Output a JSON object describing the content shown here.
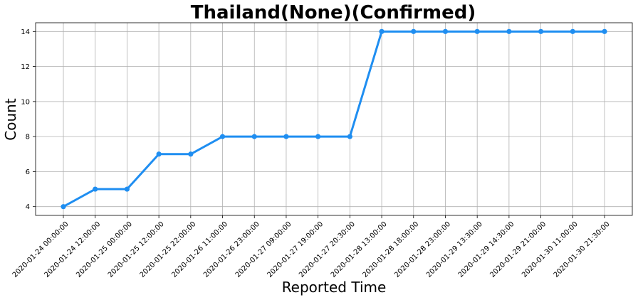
{
  "chart_data": {
    "type": "line",
    "title": "Thailand(None)(Confirmed)",
    "xlabel": "Reported Time",
    "ylabel": "Count",
    "categories": [
      "2020-01-24 00:00:00",
      "2020-01-24 12:00:00",
      "2020-01-25 00:00:00",
      "2020-01-25 12:00:00",
      "2020-01-25 22:00:00",
      "2020-01-26 11:00:00",
      "2020-01-26 23:00:00",
      "2020-01-27 09:00:00",
      "2020-01-27 19:00:00",
      "2020-01-27 20:30:00",
      "2020-01-28 13:00:00",
      "2020-01-28 18:00:00",
      "2020-01-28 23:00:00",
      "2020-01-29 13:30:00",
      "2020-01-29 14:30:00",
      "2020-01-29 21:00:00",
      "2020-01-30 11:00:00",
      "2020-01-30 21:30:00"
    ],
    "series": [
      {
        "values": [
          4,
          5,
          5,
          7,
          7,
          8,
          8,
          8,
          8,
          8,
          14,
          14,
          14,
          14,
          14,
          14,
          14,
          14
        ],
        "color": "#1f8ef1"
      }
    ],
    "ylim": [
      3.5,
      14.5
    ],
    "yticks": [
      4,
      6,
      8,
      10,
      12,
      14
    ],
    "grid": true,
    "legend": "none",
    "marker": "circle"
  }
}
